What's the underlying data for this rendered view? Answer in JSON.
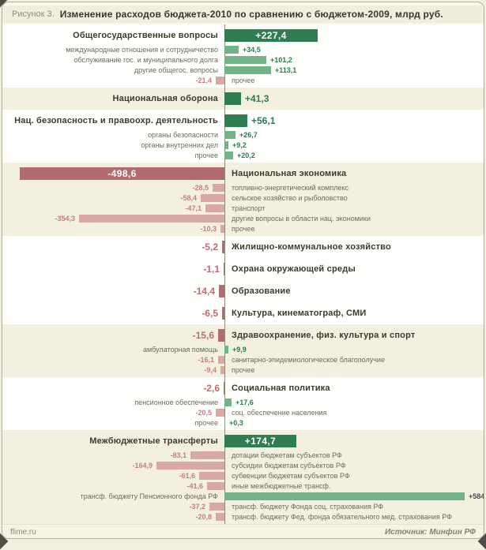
{
  "title": {
    "prefix": "Рисунок 3.",
    "text": "Изменение расходов бюджета-2010  по сравнению с бюджетом-2009,  млрд руб."
  },
  "footer": {
    "site": "flime.ru",
    "source": "Источник: Минфин РФ"
  },
  "colors": {
    "main_positive_bar": "#2f7e52",
    "sub_positive_bar": "#74b287",
    "main_negative_bar": "#b26b6e",
    "sub_negative_bar": "#d8a8a4",
    "positive_text": "#2b7b4f",
    "negative_text": "#bd6d70",
    "band_beige": "#f3f0e2",
    "band_white": "#fffffd"
  },
  "chart_data": {
    "type": "bar",
    "orientation": "horizontal",
    "title": "Изменение расходов бюджета-2010 по сравнению с бюджетом-2009",
    "unit": "млрд руб.",
    "xlim": [
      -520,
      600
    ],
    "grid": false,
    "sections": [
      {
        "name": "Общегосударственные вопросы",
        "value": 227.4,
        "display": "+227,4",
        "band": "white",
        "items": [
          {
            "label": "международные отношения и сотрудничество",
            "value": 34.5,
            "display": "+34,5"
          },
          {
            "label": "обслуживание гос. и муниципального долга",
            "value": 101.2,
            "display": "+101,2"
          },
          {
            "label": "другие общегос. вопросы",
            "value": 113.1,
            "display": "+113,1"
          },
          {
            "label": "прочее",
            "value": -21.4,
            "display": "-21,4"
          }
        ]
      },
      {
        "name": "Национальная оборона",
        "value": 41.3,
        "display": "+41,3",
        "band": "beige",
        "items": []
      },
      {
        "name": "Нац. безопасность  и правоохр.  деятельность",
        "value": 56.1,
        "display": "+56,1",
        "band": "white",
        "items": [
          {
            "label": "органы безопасности",
            "value": 26.7,
            "display": "+26,7"
          },
          {
            "label": "органы внутренних дел",
            "value": 9.2,
            "display": "+9,2"
          },
          {
            "label": "прочее",
            "value": 20.2,
            "display": "+20,2"
          }
        ]
      },
      {
        "name": "Национальная  экономика",
        "value": -498.6,
        "display": "-498,6",
        "band": "beige",
        "items": [
          {
            "label": "топливно-энергетический комплекс",
            "value": -28.5,
            "display": "-28,5"
          },
          {
            "label": "сельское хозяйство и рыболовство",
            "value": -58.4,
            "display": "-58,4"
          },
          {
            "label": "транспорт",
            "value": -47.1,
            "display": "-47,1"
          },
          {
            "label": "другие вопросы в области нац. экономики",
            "value": -354.3,
            "display": "-354,3"
          },
          {
            "label": "прочее",
            "value": -10.3,
            "display": "-10,3"
          }
        ]
      },
      {
        "name": "Жилищно-коммунальное  хозяйство",
        "value": -5.2,
        "display": "-5,2",
        "band": "white",
        "items": []
      },
      {
        "name": "Охрана окружающей  среды",
        "value": -1.1,
        "display": "-1,1",
        "band": "white",
        "items": []
      },
      {
        "name": "Образование",
        "value": -14.4,
        "display": "-14,4",
        "band": "white",
        "items": []
      },
      {
        "name": "Культура, кинематограф,  СМИ",
        "value": -6.5,
        "display": "-6,5",
        "band": "white",
        "items": []
      },
      {
        "name": "Здравоохранение,  физ. культура и спорт",
        "value": -15.6,
        "display": "-15,6",
        "band": "beige",
        "items": [
          {
            "label": "амбулаторная помощь",
            "value": 9.9,
            "display": "+9,9"
          },
          {
            "label": "санитарно-эпидемиологическое благополучие",
            "value": -16.1,
            "display": "-16,1"
          },
          {
            "label": "прочее",
            "value": -9.4,
            "display": "-9,4"
          }
        ]
      },
      {
        "name": "Социальная  политика",
        "value": -2.6,
        "display": "-2,6",
        "band": "white",
        "items": [
          {
            "label": "пенсионное обеспечение",
            "value": 17.6,
            "display": "+17,6"
          },
          {
            "label": "соц. обеспечение населения",
            "value": -20.5,
            "display": "-20,5"
          },
          {
            "label": "прочее",
            "value": 0.3,
            "display": "+0,3"
          }
        ]
      },
      {
        "name": "Межбюджетные  трансферты",
        "value": 174.7,
        "display": "+174,7",
        "band": "beige",
        "items": [
          {
            "label": "дотации бюджетам субъектов РФ",
            "value": -83.1,
            "display": "-83,1"
          },
          {
            "label": "субсидии бюджетам субъектов РФ",
            "value": -164.9,
            "display": "-164,9"
          },
          {
            "label": "субвенции бюджетам субъектов РФ",
            "value": -61.6,
            "display": "-61,6"
          },
          {
            "label": "иные межбюджетные трансф.",
            "value": -41.6,
            "display": "-41,6"
          },
          {
            "label": "трансф. бюджету Пенсионного фонда РФ",
            "value": 584,
            "display": "+584",
            "value_style": "dark"
          },
          {
            "label": "трансф. бюджету Фонда соц. страхования РФ",
            "value": -37.2,
            "display": "-37,2"
          },
          {
            "label": "трансф. бюджету Фед. фонда обязательного мед. страхования РФ",
            "value": -20.8,
            "display": "-20,8"
          }
        ]
      }
    ]
  }
}
